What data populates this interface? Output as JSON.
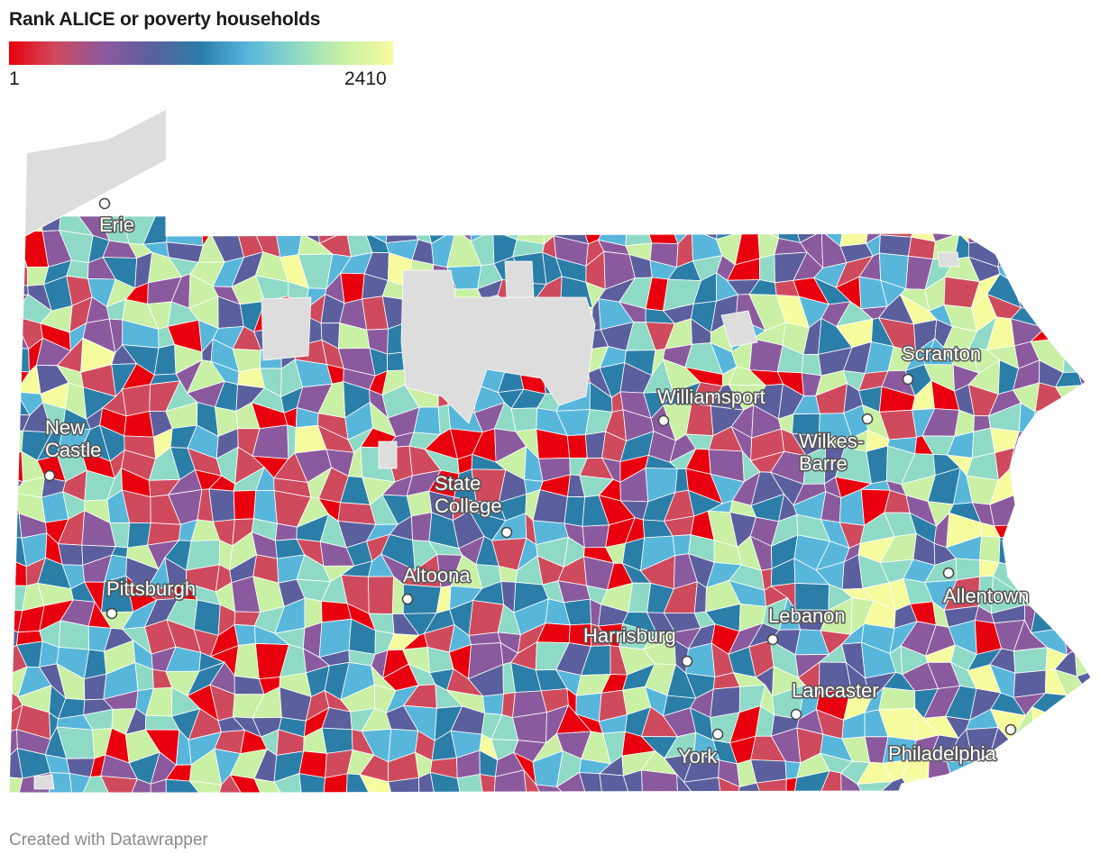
{
  "title": "Rank ALICE or poverty households",
  "legend": {
    "min_label": "1",
    "max_label": "2410",
    "colors": [
      "#e8000e",
      "#cf4a5d",
      "#8b5a9e",
      "#5b5f9d",
      "#2b7ea8",
      "#58b6db",
      "#8fdac6",
      "#c9f0a4",
      "#f6fb9e"
    ],
    "no_data_color": "#dddddd"
  },
  "cities": [
    {
      "name": "Erie",
      "lines": [
        "Erie"
      ]
    },
    {
      "name": "New Castle",
      "lines": [
        "New",
        "Castle"
      ]
    },
    {
      "name": "Pittsburgh",
      "lines": [
        "Pittsburgh"
      ]
    },
    {
      "name": "State College",
      "lines": [
        "State",
        "College"
      ]
    },
    {
      "name": "Altoona",
      "lines": [
        "Altoona"
      ]
    },
    {
      "name": "Williamsport",
      "lines": [
        "Williamsport"
      ]
    },
    {
      "name": "Scranton",
      "lines": [
        "Scranton"
      ]
    },
    {
      "name": "Wilkes-Barre",
      "lines": [
        "Wilkes-",
        "Barre"
      ]
    },
    {
      "name": "Allentown",
      "lines": [
        "Allentown"
      ]
    },
    {
      "name": "Harrisburg",
      "lines": [
        "Harrisburg"
      ]
    },
    {
      "name": "Lebanon",
      "lines": [
        "Lebanon"
      ]
    },
    {
      "name": "Lancaster",
      "lines": [
        "Lancaster"
      ]
    },
    {
      "name": "York",
      "lines": [
        "York"
      ]
    },
    {
      "name": "Philadelphia",
      "lines": [
        "Philadelphia"
      ]
    }
  ],
  "footer": "Created with Datawrapper"
}
